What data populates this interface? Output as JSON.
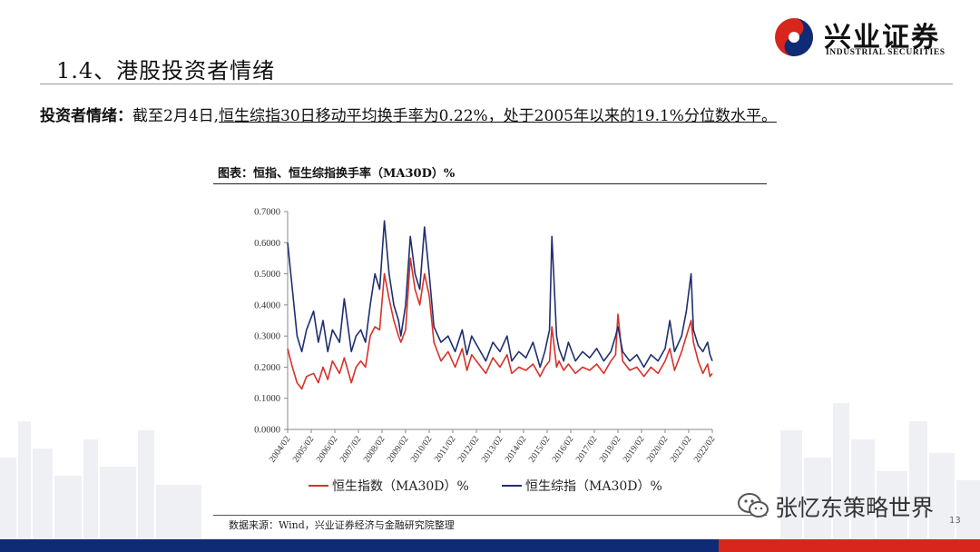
{
  "brand": {
    "name_cn": "兴业证券",
    "name_en": "INDUSTRIAL SECURITIES",
    "colors": {
      "red": "#d9261c",
      "navy": "#0f2b75"
    },
    "logo_icon": "yin-yang-logo-icon"
  },
  "page": {
    "title": "1.4、港股投资者情绪",
    "summary_lead": "投资者情绪：",
    "summary_date": "截至2月4日,",
    "summary_detail": "恒生综指30日移动平均换手率为0.22%，处于2005年以来的19.1%分位数水平。",
    "page_number": "13"
  },
  "chart_data": {
    "type": "line",
    "title": "图表：恒指、恒生综指换手率（MA30D）%",
    "xlabel": "",
    "ylabel": "",
    "ylim": [
      0,
      0.7
    ],
    "y_ticks": [
      "0.0000",
      "0.1000",
      "0.2000",
      "0.3000",
      "0.4000",
      "0.5000",
      "0.6000",
      "0.7000"
    ],
    "x_ticks": [
      "2004/02",
      "2005/02",
      "2006/02",
      "2007/02",
      "2008/02",
      "2009/02",
      "2010/02",
      "2011/02",
      "2012/02",
      "2013/02",
      "2014/02",
      "2015/02",
      "2016/02",
      "2017/02",
      "2018/02",
      "2019/02",
      "2020/02",
      "2021/02",
      "2022/02"
    ],
    "grid": false,
    "legend_position": "bottom",
    "series": [
      {
        "name": "恒生指数（MA30D）%",
        "color": "#d9302a",
        "x": [
          2004.1,
          2004.3,
          2004.5,
          2004.7,
          2004.9,
          2005.2,
          2005.4,
          2005.6,
          2005.8,
          2006.0,
          2006.3,
          2006.5,
          2006.8,
          2007.0,
          2007.2,
          2007.4,
          2007.6,
          2007.8,
          2008.0,
          2008.2,
          2008.4,
          2008.6,
          2008.8,
          2008.9,
          2009.1,
          2009.3,
          2009.5,
          2009.7,
          2009.9,
          2010.1,
          2010.3,
          2010.6,
          2010.9,
          2011.2,
          2011.5,
          2011.7,
          2011.9,
          2012.2,
          2012.5,
          2012.8,
          2013.1,
          2013.4,
          2013.6,
          2013.9,
          2014.2,
          2014.5,
          2014.8,
          2015.0,
          2015.2,
          2015.3,
          2015.5,
          2015.6,
          2015.8,
          2016.0,
          2016.3,
          2016.6,
          2016.9,
          2017.2,
          2017.5,
          2017.8,
          2018.0,
          2018.1,
          2018.3,
          2018.6,
          2018.9,
          2019.2,
          2019.5,
          2019.8,
          2020.1,
          2020.3,
          2020.5,
          2020.8,
          2021.0,
          2021.2,
          2021.3,
          2021.5,
          2021.7,
          2021.9,
          2022.0,
          2022.1
        ],
        "values": [
          0.26,
          0.2,
          0.15,
          0.13,
          0.17,
          0.18,
          0.15,
          0.2,
          0.16,
          0.22,
          0.18,
          0.23,
          0.15,
          0.2,
          0.22,
          0.2,
          0.3,
          0.33,
          0.32,
          0.5,
          0.42,
          0.35,
          0.3,
          0.28,
          0.32,
          0.55,
          0.45,
          0.4,
          0.5,
          0.43,
          0.28,
          0.22,
          0.25,
          0.2,
          0.26,
          0.19,
          0.24,
          0.21,
          0.18,
          0.23,
          0.2,
          0.24,
          0.18,
          0.2,
          0.19,
          0.21,
          0.17,
          0.2,
          0.22,
          0.33,
          0.2,
          0.22,
          0.19,
          0.21,
          0.18,
          0.2,
          0.19,
          0.21,
          0.18,
          0.22,
          0.24,
          0.37,
          0.22,
          0.19,
          0.2,
          0.17,
          0.2,
          0.18,
          0.22,
          0.26,
          0.19,
          0.25,
          0.3,
          0.35,
          0.28,
          0.22,
          0.18,
          0.21,
          0.17,
          0.18
        ]
      },
      {
        "name": "恒生综指（MA30D）%",
        "color": "#1f2f6e",
        "x": [
          2004.1,
          2004.3,
          2004.5,
          2004.7,
          2004.9,
          2005.2,
          2005.4,
          2005.6,
          2005.8,
          2006.0,
          2006.3,
          2006.5,
          2006.8,
          2007.0,
          2007.2,
          2007.4,
          2007.6,
          2007.8,
          2008.0,
          2008.2,
          2008.4,
          2008.6,
          2008.8,
          2008.9,
          2009.1,
          2009.3,
          2009.5,
          2009.7,
          2009.9,
          2010.1,
          2010.3,
          2010.6,
          2010.9,
          2011.2,
          2011.5,
          2011.7,
          2011.9,
          2012.2,
          2012.5,
          2012.8,
          2013.1,
          2013.4,
          2013.6,
          2013.9,
          2014.2,
          2014.5,
          2014.8,
          2015.0,
          2015.2,
          2015.3,
          2015.5,
          2015.6,
          2015.8,
          2016.0,
          2016.3,
          2016.6,
          2016.9,
          2017.2,
          2017.5,
          2017.8,
          2018.0,
          2018.1,
          2018.3,
          2018.6,
          2018.9,
          2019.2,
          2019.5,
          2019.8,
          2020.1,
          2020.3,
          2020.5,
          2020.8,
          2021.0,
          2021.2,
          2021.3,
          2021.5,
          2021.7,
          2021.9,
          2022.0,
          2022.1
        ],
        "values": [
          0.6,
          0.45,
          0.3,
          0.25,
          0.32,
          0.38,
          0.28,
          0.35,
          0.25,
          0.32,
          0.28,
          0.42,
          0.25,
          0.3,
          0.32,
          0.28,
          0.4,
          0.5,
          0.45,
          0.67,
          0.5,
          0.4,
          0.35,
          0.3,
          0.4,
          0.62,
          0.5,
          0.45,
          0.65,
          0.5,
          0.33,
          0.28,
          0.3,
          0.25,
          0.32,
          0.24,
          0.3,
          0.26,
          0.22,
          0.28,
          0.25,
          0.3,
          0.22,
          0.25,
          0.23,
          0.28,
          0.2,
          0.25,
          0.32,
          0.62,
          0.3,
          0.26,
          0.22,
          0.28,
          0.22,
          0.25,
          0.23,
          0.26,
          0.22,
          0.25,
          0.3,
          0.33,
          0.25,
          0.22,
          0.24,
          0.2,
          0.24,
          0.22,
          0.26,
          0.35,
          0.25,
          0.3,
          0.38,
          0.5,
          0.32,
          0.27,
          0.25,
          0.28,
          0.24,
          0.22
        ]
      }
    ],
    "source": "数据来源：Wind，兴业证券经济与金融研究院整理"
  },
  "watermark": {
    "text": "张忆东策略世界",
    "icon": "wechat-icon"
  }
}
